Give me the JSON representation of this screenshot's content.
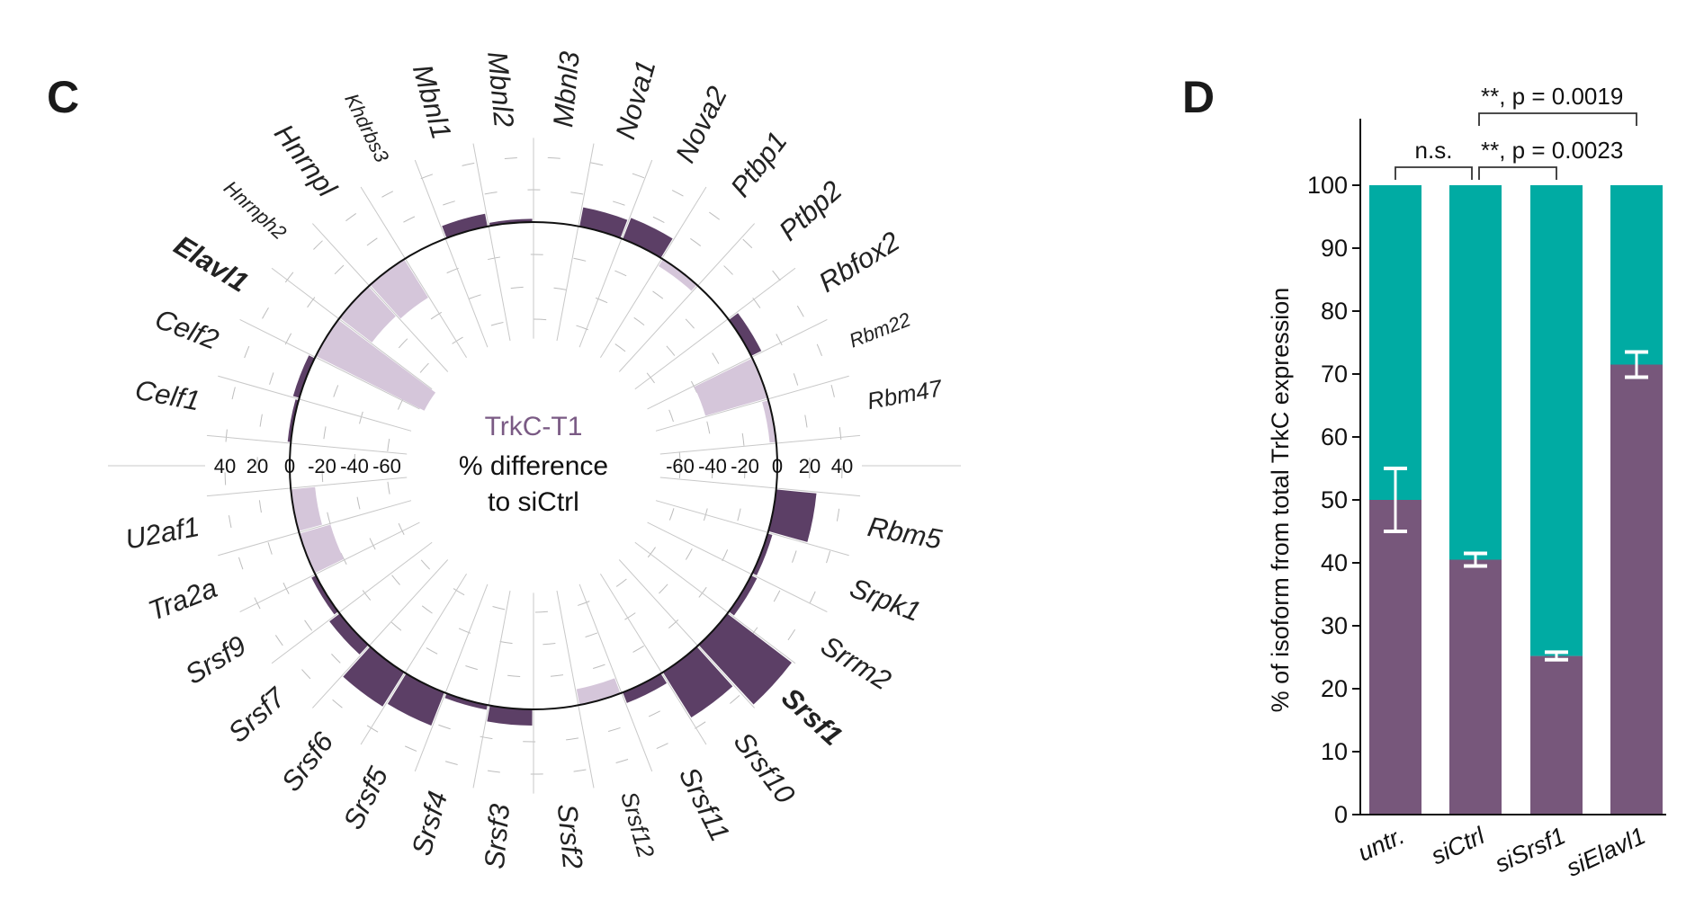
{
  "panels": {
    "left": "C",
    "right": "D"
  },
  "colors": {
    "positive": "#5c3f66",
    "negative": "#d5c6da",
    "purple": "#77577b",
    "teal": "#00aba3",
    "title": "#7a5a84"
  },
  "chart_data": [
    {
      "type": "bar",
      "subtype": "radial",
      "center_title": "TrkC-T1",
      "center_lines": [
        "% difference",
        "to siCtrl"
      ],
      "radial_ticks": [
        -60,
        -40,
        -20,
        0,
        20,
        40
      ],
      "radial_tick_labels_left": [
        "40",
        "20",
        "0",
        "-20",
        "-40",
        "-60"
      ],
      "radial_tick_labels_right": [
        "-60",
        "-40",
        "-20",
        "0",
        "20",
        "40"
      ],
      "genes": [
        {
          "name": "Mbnl3",
          "value": 0,
          "size": "l",
          "bold": false
        },
        {
          "name": "Nova1",
          "value": 12,
          "size": "l",
          "bold": false
        },
        {
          "name": "Nova2",
          "value": 14,
          "size": "l",
          "bold": false
        },
        {
          "name": "Ptbp1",
          "value": -5,
          "size": "l",
          "bold": false
        },
        {
          "name": "Ptbp2",
          "value": 0,
          "size": "l",
          "bold": false
        },
        {
          "name": "Rbfox2",
          "value": 7,
          "size": "l",
          "bold": false
        },
        {
          "name": "Rbm22",
          "value": -40,
          "size": "s",
          "bold": false
        },
        {
          "name": "Rbm47",
          "value": -4,
          "size": "m",
          "bold": false
        },
        null,
        {
          "name": "Rbm5",
          "value": 25,
          "size": "l",
          "bold": false
        },
        {
          "name": "Srpk1",
          "value": 3,
          "size": "l",
          "bold": false
        },
        {
          "name": "Srrm2",
          "value": 4,
          "size": "l",
          "bold": false
        },
        {
          "name": "Srsf1",
          "value": 50,
          "size": "l",
          "bold": true
        },
        {
          "name": "Srsf10",
          "value": 33,
          "size": "l",
          "bold": false
        },
        {
          "name": "Srsf11",
          "value": 7,
          "size": "l",
          "bold": false
        },
        {
          "name": "Srsf12",
          "value": -10,
          "size": "m",
          "bold": false
        },
        {
          "name": "Srsf2",
          "value": 0,
          "size": "l",
          "bold": false
        },
        {
          "name": "Srsf3",
          "value": 10,
          "size": "l",
          "bold": false
        },
        {
          "name": "Srsf4",
          "value": 3,
          "size": "l",
          "bold": false
        },
        {
          "name": "Srsf5",
          "value": 22,
          "size": "l",
          "bold": false
        },
        {
          "name": "Srsf6",
          "value": 25,
          "size": "l",
          "bold": false
        },
        {
          "name": "Srsf7",
          "value": 8,
          "size": "l",
          "bold": false
        },
        {
          "name": "Srsf9",
          "value": 3,
          "size": "l",
          "bold": false
        },
        {
          "name": "Tra2a",
          "value": -20,
          "size": "l",
          "bold": false
        },
        {
          "name": "U2af1",
          "value": -15,
          "size": "l",
          "bold": false
        },
        null,
        {
          "name": "Celf1",
          "value": 2,
          "size": "l",
          "bold": false
        },
        {
          "name": "Celf2",
          "value": 4,
          "size": "l",
          "bold": false
        },
        {
          "name": "Elavl1",
          "value": -75,
          "size": "l",
          "bold": true
        },
        {
          "name": "Hnrnph2",
          "value": -25,
          "size": "s",
          "bold": false
        },
        {
          "name": "Hnrnpl",
          "value": -28,
          "size": "l",
          "bold": false
        },
        {
          "name": "Khdrbs3",
          "value": 0,
          "size": "s",
          "bold": false
        },
        {
          "name": "Mbnl1",
          "value": 8,
          "size": "l",
          "bold": false
        },
        {
          "name": "Mbnl2",
          "value": 2,
          "size": "l",
          "bold": false
        }
      ]
    },
    {
      "type": "bar",
      "stacked": true,
      "ylabel": "% of isoform from total TrkC expression",
      "ylim": [
        0,
        100
      ],
      "yticks": [
        "0",
        "10",
        "20",
        "30",
        "40",
        "50",
        "60",
        "70",
        "80",
        "90",
        "100"
      ],
      "categories": [
        "untr.",
        "siCtrl",
        "siSrsf1",
        "siElavl1"
      ],
      "values": [
        50,
        40.5,
        25.2,
        71.5
      ],
      "error": [
        5,
        1,
        0.6,
        2
      ],
      "total": 100,
      "annotations": [
        {
          "from": 0,
          "to": 1,
          "text": "n.s.",
          "level": 1
        },
        {
          "from": 1,
          "to": 2,
          "text": "**, p = 0.0023",
          "level": 1
        },
        {
          "from": 1,
          "to": 3,
          "text": "**, p = 0.0019",
          "level": 2
        }
      ]
    }
  ]
}
